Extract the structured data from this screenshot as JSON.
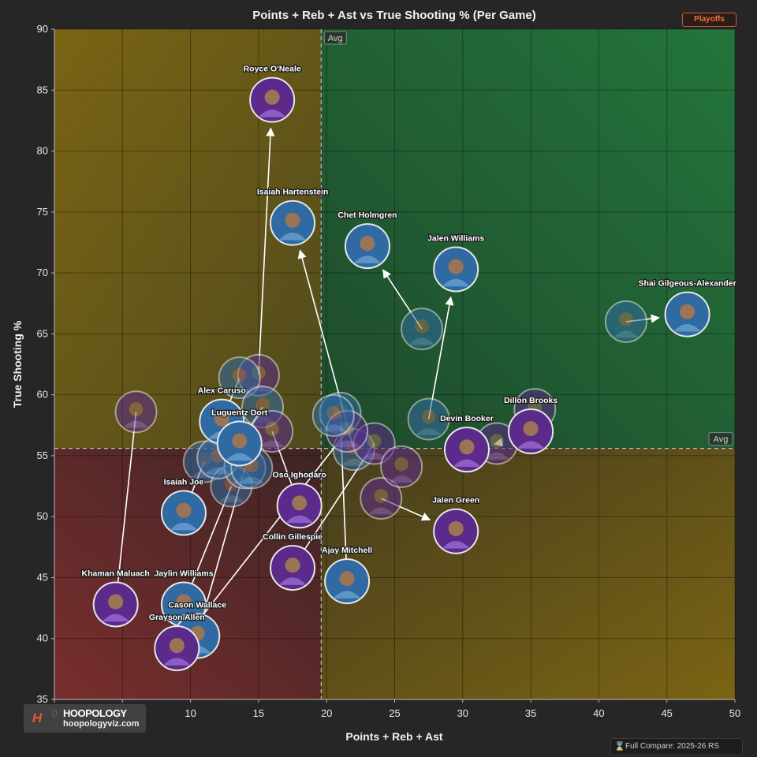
{
  "badge": "Playoffs",
  "logo": {
    "mark": "H",
    "name": "HOOPOLOGY",
    "url": "hoopologyviz.com"
  },
  "footer": {
    "icon": "hourglass-icon",
    "text": "Full Compare: 2025-26 RS"
  },
  "colors": {
    "bg": "#262626",
    "q_top_left": "#6b5d1b",
    "q_top_right": "#1f6a3a",
    "q_bottom_left": "#6e2a2a",
    "q_bottom_right": "#6b5d1b",
    "avatar_purple": "#5e2a8c",
    "avatar_blue": "#2d6aa0",
    "accent": "#f0713a"
  },
  "chart_data": {
    "type": "scatter",
    "title": "Points + Reb + Ast vs True Shooting % (Per Game)",
    "xlabel": "Points + Reb + Ast",
    "ylabel": "True Shooting %",
    "xlim": [
      0,
      50
    ],
    "ylim": [
      35,
      90
    ],
    "xticks": [
      0,
      5,
      10,
      15,
      20,
      25,
      30,
      35,
      40,
      45,
      50
    ],
    "yticks": [
      35,
      40,
      45,
      50,
      55,
      60,
      65,
      70,
      75,
      80,
      85,
      90
    ],
    "grid": true,
    "avg_x": 19.6,
    "avg_y": 55.6,
    "avg_label": "Avg",
    "players": [
      {
        "name": "Royce O'Neale",
        "team": "purple",
        "x": 16.0,
        "y": 84.2,
        "from": [
          15.0,
          61.6
        ],
        "arrow": true
      },
      {
        "name": "Isaiah Hartenstein",
        "team": "blue",
        "x": 17.5,
        "y": 74.1,
        "from": [
          22.0,
          55.5
        ],
        "arrow": true
      },
      {
        "name": "Chet Holmgren",
        "team": "blue",
        "x": 23.0,
        "y": 72.2,
        "from": [
          27.0,
          65.4
        ],
        "arrow": true
      },
      {
        "name": "Jalen Williams",
        "team": "blue",
        "x": 29.5,
        "y": 70.3,
        "from": [
          27.5,
          58.0
        ],
        "arrow": true
      },
      {
        "name": "Shai Gilgeous-Alexander",
        "team": "blue",
        "x": 46.5,
        "y": 66.6,
        "from": [
          42.0,
          66.0
        ],
        "arrow": true
      },
      {
        "name": "Alex Caruso",
        "team": "blue",
        "x": 12.3,
        "y": 57.8,
        "from": [
          13.6,
          61.4
        ],
        "arrow": false
      },
      {
        "name": "Luguentz Dort",
        "team": "blue",
        "x": 13.6,
        "y": 56.0,
        "from": [
          15.3,
          59.0
        ],
        "arrow": false
      },
      {
        "name": "Dillon Brooks",
        "team": "purple",
        "x": 35.0,
        "y": 57.0,
        "from": [
          35.3,
          58.8
        ],
        "arrow": false
      },
      {
        "name": "Devin Booker",
        "team": "purple",
        "x": 30.3,
        "y": 55.5,
        "from": [
          32.5,
          56.0
        ],
        "arrow": true
      },
      {
        "name": "Isaiah Joe",
        "team": "blue",
        "x": 9.5,
        "y": 50.3,
        "from": [
          11.0,
          54.5
        ],
        "arrow": false
      },
      {
        "name": "Oso Ighodaro",
        "team": "purple",
        "x": 18.0,
        "y": 50.9,
        "from": [
          16.0,
          57.0
        ],
        "arrow": false
      },
      {
        "name": "Jalen Green",
        "team": "purple",
        "x": 29.5,
        "y": 48.8,
        "from": [
          24.0,
          51.5
        ],
        "arrow": true
      },
      {
        "name": "Collin Gillespie",
        "team": "purple",
        "x": 17.5,
        "y": 45.8,
        "from": [
          23.5,
          56.0
        ],
        "arrow": false
      },
      {
        "name": "Ajay Mitchell",
        "team": "blue",
        "x": 21.5,
        "y": 44.7,
        "from": [
          21.0,
          58.5
        ],
        "arrow": false
      },
      {
        "name": "Khaman Maluach",
        "team": "purple",
        "x": 4.5,
        "y": 42.8,
        "from": [
          6.0,
          58.6
        ],
        "arrow": false
      },
      {
        "name": "Jaylin Williams",
        "team": "blue",
        "x": 9.5,
        "y": 42.8,
        "from": [
          13.0,
          52.5
        ],
        "arrow": false
      },
      {
        "name": "Cason Wallace",
        "team": "blue",
        "x": 10.5,
        "y": 40.2,
        "from": [
          14.0,
          54.0
        ],
        "arrow": false
      },
      {
        "name": "Grayson Allen",
        "team": "purple",
        "x": 9.0,
        "y": 39.2,
        "from": [
          21.5,
          57.0
        ],
        "arrow": false
      }
    ],
    "extra_points": [
      {
        "team": "purple",
        "x": 25.5,
        "y": 54.1
      },
      {
        "team": "blue",
        "x": 20.5,
        "y": 58.3
      },
      {
        "team": "blue",
        "x": 12.0,
        "y": 54.8
      },
      {
        "team": "blue",
        "x": 14.5,
        "y": 54.0
      }
    ]
  }
}
